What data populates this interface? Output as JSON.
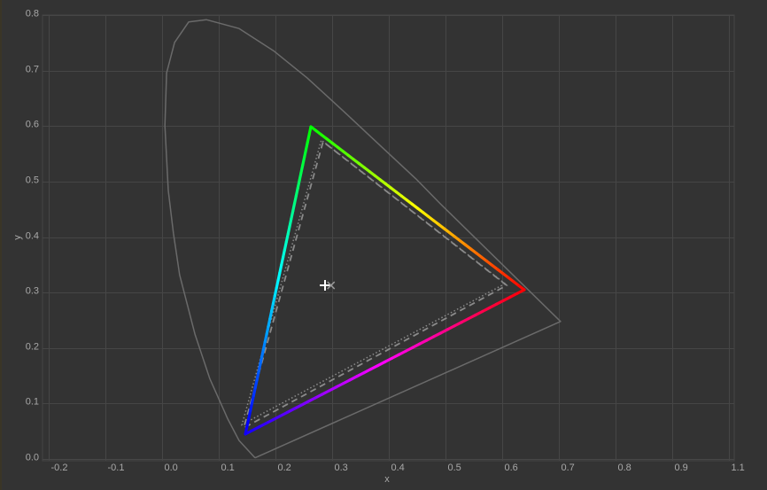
{
  "chart_data": {
    "type": "line",
    "title": "",
    "xlabel": "x",
    "ylabel": "y",
    "xlim": [
      -0.2,
      1.0
    ],
    "ylim": [
      0.0,
      0.8
    ],
    "grid": true,
    "x_tick_labels": [
      "-0.2",
      "-0.1",
      "0.0",
      "0.1",
      "0.2",
      "0.3",
      "0.4",
      "0.5",
      "0.6",
      "0.7",
      "0.8",
      "0.9",
      "1.1"
    ],
    "y_tick_labels": [
      "0.0",
      "0.1",
      "0.2",
      "0.3",
      "0.4",
      "0.5",
      "0.6",
      "0.7",
      "0.8"
    ],
    "spectral_locus": {
      "color": "#6a6a6a",
      "points": [
        [
          0.164,
          0.002
        ],
        [
          0.136,
          0.033
        ],
        [
          0.116,
          0.072
        ],
        [
          0.084,
          0.145
        ],
        [
          0.058,
          0.225
        ],
        [
          0.031,
          0.332
        ],
        [
          0.02,
          0.407
        ],
        [
          0.011,
          0.484
        ],
        [
          0.005,
          0.601
        ],
        [
          0.008,
          0.696
        ],
        [
          0.022,
          0.751
        ],
        [
          0.047,
          0.788
        ],
        [
          0.078,
          0.792
        ],
        [
          0.136,
          0.776
        ],
        [
          0.198,
          0.735
        ],
        [
          0.256,
          0.687
        ],
        [
          0.319,
          0.628
        ],
        [
          0.386,
          0.564
        ],
        [
          0.448,
          0.505
        ],
        [
          0.491,
          0.46
        ],
        [
          0.703,
          0.248
        ],
        [
          0.164,
          0.002
        ]
      ]
    },
    "gamut_primary": {
      "style": "rainbow-solid",
      "red": [
        0.639,
        0.305
      ],
      "green": [
        0.2625,
        0.599
      ],
      "blue": [
        0.147,
        0.045
      ]
    },
    "gamut_dashed": {
      "color": "#8a8a8a",
      "red": [
        0.608,
        0.313
      ],
      "green": [
        0.284,
        0.572
      ],
      "blue": [
        0.144,
        0.056
      ]
    },
    "gamut_dotted": {
      "color": "#8a8a8a",
      "red": [
        0.605,
        0.316
      ],
      "green": [
        0.281,
        0.575
      ],
      "blue": [
        0.141,
        0.062
      ]
    },
    "white_point_plus": [
      0.2875,
      0.313
    ],
    "white_point_cross": [
      0.298,
      0.313
    ],
    "colors": {
      "background": "#333333",
      "grid": "#464646",
      "axis_text": "#a8a8a8",
      "white_point": "#ffffff"
    }
  }
}
